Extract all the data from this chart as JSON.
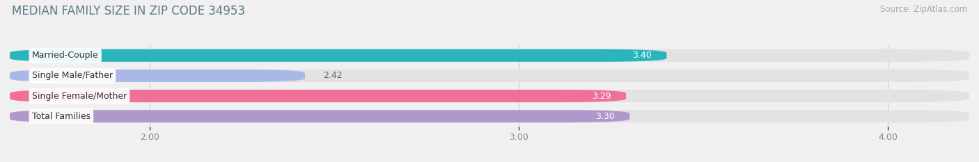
{
  "title": "MEDIAN FAMILY SIZE IN ZIP CODE 34953",
  "source_text": "Source: ZipAtlas.com",
  "categories": [
    "Married-Couple",
    "Single Male/Father",
    "Single Female/Mother",
    "Total Families"
  ],
  "values": [
    3.4,
    2.42,
    3.29,
    3.3
  ],
  "bar_colors": [
    "#2ab5be",
    "#aab8e8",
    "#f07098",
    "#b098cc"
  ],
  "value_label_colors": [
    "#ffffff",
    "#666666",
    "#ffffff",
    "#ffffff"
  ],
  "x_ticks": [
    2.0,
    3.0,
    4.0
  ],
  "x_tick_labels": [
    "2.00",
    "3.00",
    "4.00"
  ],
  "xlim_min": 1.62,
  "xlim_max": 4.22,
  "title_color": "#5a7a8a",
  "title_fontsize": 12,
  "source_fontsize": 8.5,
  "label_fontsize": 9,
  "value_fontsize": 9,
  "tick_fontsize": 9,
  "background_color": "#f0f0f0",
  "bar_background_color": "#e2e2e2",
  "bar_height": 0.62,
  "bar_gap": 0.38
}
